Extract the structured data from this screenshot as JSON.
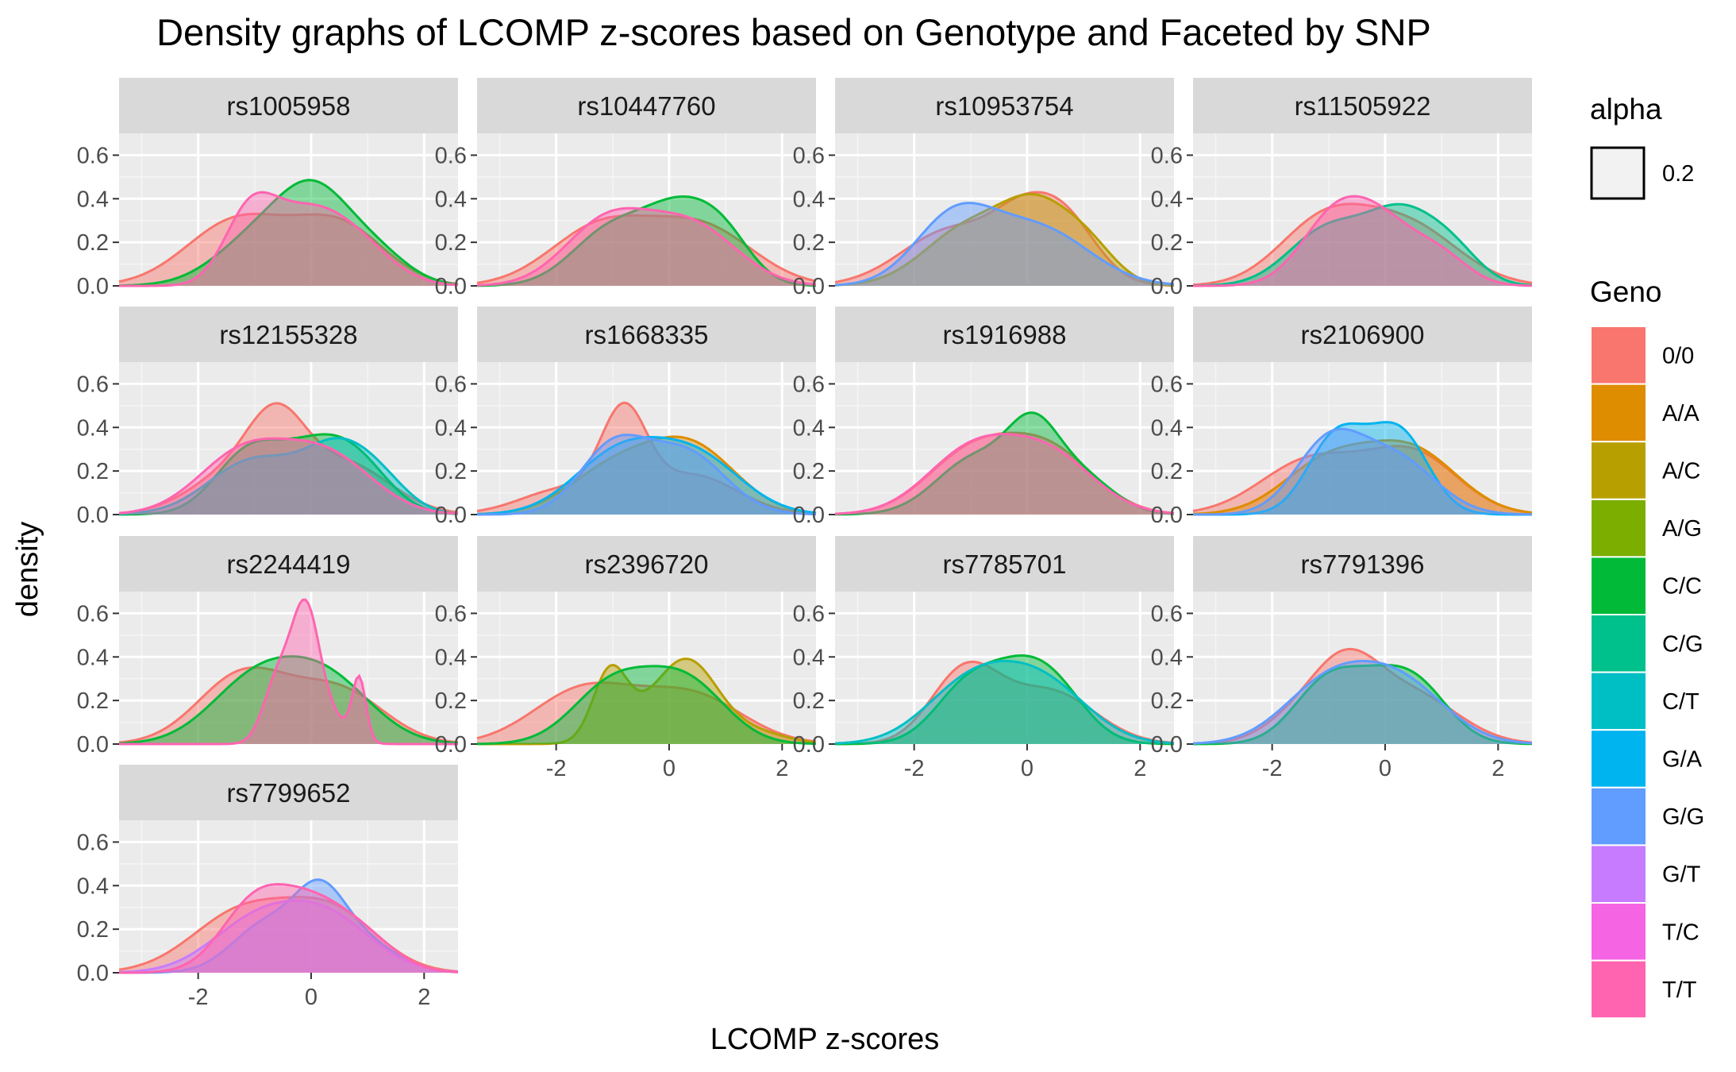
{
  "chart_data": {
    "type": "area",
    "title": "Density graphs of LCOMP z-scores based on Genotype and Faceted by SNP",
    "xlabel": "LCOMP z-scores",
    "ylabel": "density",
    "xlim": [
      -3.4,
      2.6
    ],
    "ylim": [
      0,
      0.7
    ],
    "x_ticks": [
      -2,
      0,
      2
    ],
    "y_ticks": [
      0.0,
      0.2,
      0.4,
      0.6
    ],
    "x_tick_labels": [
      "-2",
      "0",
      "2"
    ],
    "y_tick_labels": [
      "0.0",
      "0.2",
      "0.4",
      "0.6"
    ],
    "grid": true,
    "fill_alpha": 0.2,
    "legend_alpha": {
      "title": "alpha",
      "label": "0.2"
    },
    "legend_geno": {
      "title": "Geno",
      "items": [
        {
          "label": "0/0",
          "color": "#F8766D"
        },
        {
          "label": "A/A",
          "color": "#DE8C00"
        },
        {
          "label": "A/C",
          "color": "#B79F00"
        },
        {
          "label": "A/G",
          "color": "#7CAE00"
        },
        {
          "label": "C/C",
          "color": "#00BA38"
        },
        {
          "label": "C/G",
          "color": "#00C08B"
        },
        {
          "label": "C/T",
          "color": "#00BFC4"
        },
        {
          "label": "G/A",
          "color": "#00B4F0"
        },
        {
          "label": "G/G",
          "color": "#619CFF"
        },
        {
          "label": "G/T",
          "color": "#C77CFF"
        },
        {
          "label": "T/C",
          "color": "#F564E3"
        },
        {
          "label": "T/T",
          "color": "#FF64B0"
        }
      ]
    },
    "legend_position": "right",
    "facets": [
      {
        "snp": "rs1005958",
        "series": [
          {
            "geno": "0/0",
            "bumps": [
              [
                -1.3,
                0.3,
                0.9
              ],
              [
                0.5,
                0.27,
                0.8
              ]
            ]
          },
          {
            "geno": "C/C",
            "bumps": [
              [
                -0.8,
                0.25,
                0.8
              ],
              [
                0.1,
                0.31,
                0.6
              ],
              [
                1.1,
                0.15,
                0.6
              ]
            ]
          },
          {
            "geno": "T/T",
            "bumps": [
              [
                -1.1,
                0.3,
                0.45
              ],
              [
                -0.3,
                0.22,
                0.6
              ],
              [
                0.6,
                0.24,
                0.7
              ]
            ]
          }
        ]
      },
      {
        "snp": "rs10447760",
        "series": [
          {
            "geno": "0/0",
            "bumps": [
              [
                -1.2,
                0.27,
                0.9
              ],
              [
                0.6,
                0.26,
                0.9
              ]
            ]
          },
          {
            "geno": "C/C",
            "bumps": [
              [
                -1.0,
                0.26,
                0.7
              ],
              [
                0.2,
                0.3,
                0.6
              ],
              [
                1.0,
                0.18,
                0.5
              ]
            ]
          },
          {
            "geno": "T/T",
            "bumps": [
              [
                -1.1,
                0.29,
                0.75
              ],
              [
                0.4,
                0.27,
                0.8
              ]
            ]
          }
        ]
      },
      {
        "snp": "rs10953754",
        "series": [
          {
            "geno": "0/0",
            "bumps": [
              [
                -1.3,
                0.26,
                0.9
              ],
              [
                0.6,
                0.32,
                0.6
              ],
              [
                -0.2,
                0.15,
                0.5
              ]
            ]
          },
          {
            "geno": "A/C",
            "bumps": [
              [
                -1.0,
                0.27,
                0.8
              ],
              [
                0.2,
                0.3,
                0.6
              ],
              [
                1.1,
                0.15,
                0.5
              ]
            ]
          },
          {
            "geno": "G/G",
            "bumps": [
              [
                -1.3,
                0.3,
                0.7
              ],
              [
                0.2,
                0.26,
                0.9
              ]
            ]
          }
        ]
      },
      {
        "snp": "rs11505922",
        "series": [
          {
            "geno": "0/0",
            "bumps": [
              [
                -1.1,
                0.28,
                0.8
              ],
              [
                0.4,
                0.27,
                0.9
              ]
            ]
          },
          {
            "geno": "C/G",
            "bumps": [
              [
                -1.0,
                0.26,
                0.7
              ],
              [
                0.3,
                0.3,
                0.6
              ],
              [
                1.2,
                0.14,
                0.5
              ]
            ]
          },
          {
            "geno": "T/T",
            "bumps": [
              [
                -0.9,
                0.3,
                0.6
              ],
              [
                0.0,
                0.24,
                0.6
              ],
              [
                1.0,
                0.12,
                0.5
              ]
            ]
          }
        ]
      },
      {
        "snp": "rs12155328",
        "series": [
          {
            "geno": "0/0",
            "bumps": [
              [
                -1.3,
                0.2,
                0.8
              ],
              [
                -0.6,
                0.3,
                0.5
              ],
              [
                0.6,
                0.23,
                0.8
              ]
            ]
          },
          {
            "geno": "C/C",
            "bumps": [
              [
                -1.1,
                0.28,
                0.6
              ],
              [
                0.0,
                0.22,
                0.6
              ],
              [
                0.8,
                0.22,
                0.6
              ]
            ]
          },
          {
            "geno": "C/T",
            "bumps": [
              [
                -1.0,
                0.25,
                0.8
              ],
              [
                0.5,
                0.28,
                0.6
              ],
              [
                1.3,
                0.1,
                0.5
              ]
            ]
          },
          {
            "geno": "T/T",
            "bumps": [
              [
                -1.2,
                0.28,
                0.8
              ],
              [
                0.3,
                0.26,
                0.8
              ]
            ]
          }
        ]
      },
      {
        "snp": "rs1668335",
        "series": [
          {
            "geno": "0/0",
            "bumps": [
              [
                -0.8,
                0.4,
                0.4
              ],
              [
                -1.8,
                0.12,
                0.8
              ],
              [
                0.4,
                0.18,
                0.8
              ]
            ]
          },
          {
            "geno": "A/A",
            "bumps": [
              [
                -1.0,
                0.2,
                0.8
              ],
              [
                0.4,
                0.3,
                0.8
              ]
            ]
          },
          {
            "geno": "G/A",
            "bumps": [
              [
                -0.9,
                0.27,
                0.8
              ],
              [
                0.5,
                0.25,
                0.8
              ]
            ]
          },
          {
            "geno": "G/G",
            "bumps": [
              [
                -1.0,
                0.3,
                0.6
              ],
              [
                0.3,
                0.28,
                0.7
              ]
            ]
          }
        ]
      },
      {
        "snp": "rs1916988",
        "series": [
          {
            "geno": "0/0",
            "bumps": [
              [
                -1.0,
                0.27,
                0.8
              ],
              [
                0.4,
                0.28,
                0.8
              ]
            ]
          },
          {
            "geno": "C/C",
            "bumps": [
              [
                -0.9,
                0.26,
                0.7
              ],
              [
                0.1,
                0.3,
                0.45
              ],
              [
                0.9,
                0.18,
                0.6
              ]
            ]
          },
          {
            "geno": "T/T",
            "bumps": [
              [
                -1.0,
                0.28,
                0.8
              ],
              [
                0.4,
                0.26,
                0.8
              ]
            ]
          }
        ]
      },
      {
        "snp": "rs2106900",
        "series": [
          {
            "geno": "0/0",
            "bumps": [
              [
                -1.3,
                0.25,
                0.9
              ],
              [
                0.5,
                0.27,
                0.8
              ]
            ]
          },
          {
            "geno": "A/A",
            "bumps": [
              [
                -1.0,
                0.24,
                0.8
              ],
              [
                0.5,
                0.28,
                0.8
              ]
            ]
          },
          {
            "geno": "G/A",
            "bumps": [
              [
                -0.9,
                0.3,
                0.5
              ],
              [
                0.3,
                0.31,
                0.5
              ],
              [
                -0.3,
                0.12,
                0.6
              ]
            ]
          },
          {
            "geno": "G/G",
            "bumps": [
              [
                -1.0,
                0.32,
                0.6
              ],
              [
                0.2,
                0.25,
                0.7
              ]
            ]
          }
        ]
      },
      {
        "snp": "rs2244419",
        "series": [
          {
            "geno": "0/0",
            "bumps": [
              [
                -1.2,
                0.32,
                0.8
              ],
              [
                0.5,
                0.24,
                0.8
              ]
            ]
          },
          {
            "geno": "C/C",
            "bumps": [
              [
                -1.0,
                0.28,
                0.8
              ],
              [
                0.3,
                0.28,
                0.8
              ]
            ]
          },
          {
            "geno": "T/T",
            "bumps": [
              [
                -0.6,
                0.28,
                0.25
              ],
              [
                -0.1,
                0.6,
                0.25
              ],
              [
                0.85,
                0.28,
                0.12
              ],
              [
                0.4,
                0.1,
                0.3
              ]
            ]
          }
        ]
      },
      {
        "snp": "rs2396720",
        "series": [
          {
            "geno": "0/0",
            "bumps": [
              [
                -1.5,
                0.25,
                0.9
              ],
              [
                0.4,
                0.22,
                0.9
              ]
            ]
          },
          {
            "geno": "A/C",
            "bumps": [
              [
                -1.05,
                0.3,
                0.3
              ],
              [
                0.4,
                0.28,
                0.5
              ],
              [
                -0.2,
                0.15,
                0.6
              ],
              [
                1.4,
                0.06,
                0.6
              ]
            ]
          },
          {
            "geno": "C/C",
            "bumps": [
              [
                -1.0,
                0.27,
                0.7
              ],
              [
                0.3,
                0.28,
                0.7
              ]
            ]
          }
        ]
      },
      {
        "snp": "rs7785701",
        "series": [
          {
            "geno": "0/0",
            "bumps": [
              [
                -1.1,
                0.33,
                0.6
              ],
              [
                0.4,
                0.24,
                0.8
              ]
            ]
          },
          {
            "geno": "C/C",
            "bumps": [
              [
                -1.0,
                0.28,
                0.6
              ],
              [
                0.4,
                0.28,
                0.6
              ],
              [
                -0.2,
                0.12,
                0.5
              ]
            ]
          },
          {
            "geno": "C/T",
            "bumps": [
              [
                -1.0,
                0.27,
                0.8
              ],
              [
                0.3,
                0.26,
                0.8
              ]
            ]
          }
        ]
      },
      {
        "snp": "rs7791396",
        "series": [
          {
            "geno": "0/0",
            "bumps": [
              [
                -0.7,
                0.33,
                0.6
              ],
              [
                0.5,
                0.22,
                0.8
              ],
              [
                -1.6,
                0.1,
                0.6
              ]
            ]
          },
          {
            "geno": "C/C",
            "bumps": [
              [
                -1.0,
                0.29,
                0.6
              ],
              [
                0.5,
                0.28,
                0.6
              ],
              [
                -0.2,
                0.1,
                0.5
              ]
            ]
          },
          {
            "geno": "G/G",
            "bumps": [
              [
                -1.0,
                0.27,
                0.8
              ],
              [
                0.3,
                0.26,
                0.8
              ]
            ]
          }
        ]
      },
      {
        "snp": "rs7799652",
        "series": [
          {
            "geno": "0/0",
            "bumps": [
              [
                -1.2,
                0.28,
                0.9
              ],
              [
                0.4,
                0.26,
                0.8
              ]
            ]
          },
          {
            "geno": "G/G",
            "bumps": [
              [
                -0.8,
                0.22,
                0.6
              ],
              [
                0.15,
                0.3,
                0.45
              ],
              [
                0.9,
                0.14,
                0.6
              ]
            ]
          },
          {
            "geno": "G/T",
            "bumps": [
              [
                -1.0,
                0.22,
                0.8
              ],
              [
                0.3,
                0.24,
                0.8
              ]
            ]
          },
          {
            "geno": "T/T",
            "bumps": [
              [
                -1.0,
                0.31,
                0.6
              ],
              [
                0.0,
                0.25,
                0.6
              ],
              [
                0.9,
                0.15,
                0.6
              ]
            ]
          }
        ]
      }
    ]
  }
}
